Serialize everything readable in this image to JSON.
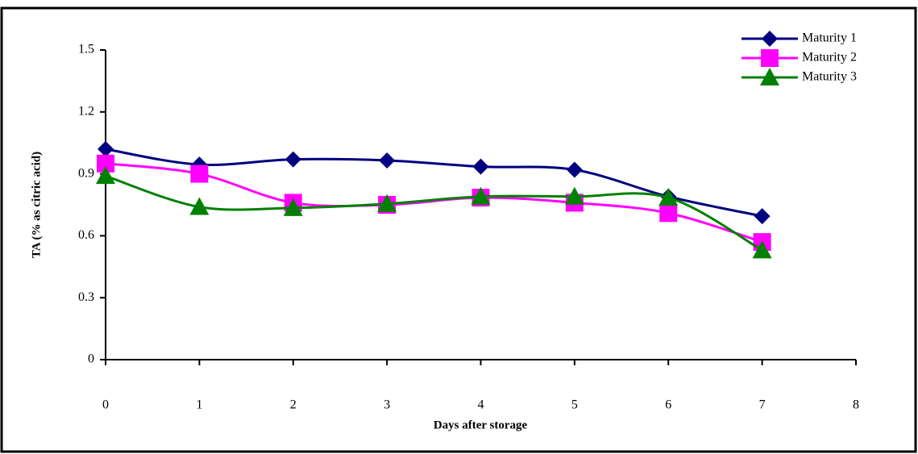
{
  "chart_data": {
    "type": "line",
    "x_label": "Days after storage",
    "y_label": "TA (% as citric acid)",
    "x": [
      0,
      1,
      2,
      3,
      4,
      5,
      6,
      7
    ],
    "series": [
      {
        "name": "Maturity 1",
        "color": "#000080",
        "marker": "diamond",
        "values": [
          1.02,
          0.945,
          0.97,
          0.965,
          0.935,
          0.92,
          0.79,
          0.695
        ]
      },
      {
        "name": "Maturity 2",
        "color": "#ff00ff",
        "marker": "square",
        "values": [
          0.95,
          0.9,
          0.76,
          0.75,
          0.785,
          0.76,
          0.71,
          0.57
        ]
      },
      {
        "name": "Maturity 3",
        "color": "#008000",
        "marker": "triangle",
        "values": [
          0.89,
          0.74,
          0.735,
          0.755,
          0.79,
          0.79,
          0.785,
          0.53
        ]
      }
    ],
    "xlim": [
      0,
      8
    ],
    "xticks": [
      0,
      1,
      2,
      3,
      4,
      5,
      6,
      7,
      8
    ],
    "ylim": [
      0,
      1.5
    ],
    "yticks": [
      0,
      0.3,
      0.6,
      0.9,
      1.2,
      1.5
    ],
    "smooth": true,
    "legend": "top-right"
  }
}
